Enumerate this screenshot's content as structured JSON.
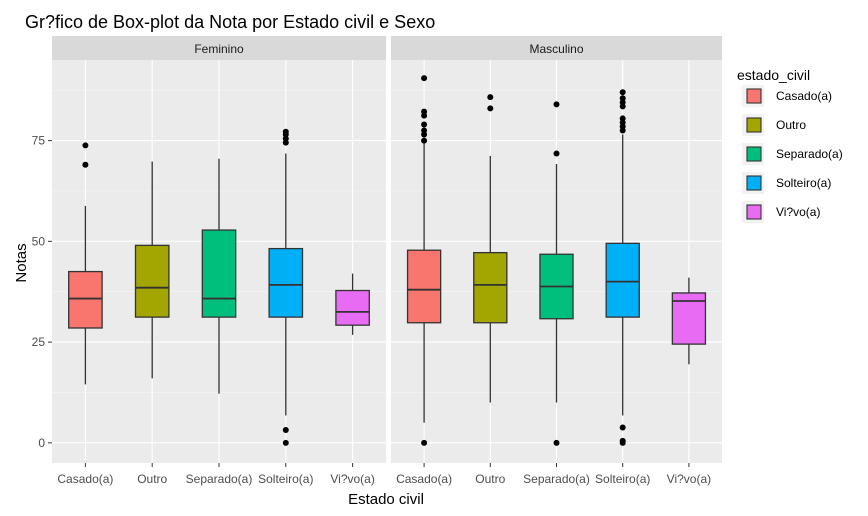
{
  "chart_data": {
    "type": "boxplot",
    "title": "Gr?fico de Box-plot da Nota por Estado civil e Sexo",
    "xlabel": "Estado civil",
    "ylabel": "Notas",
    "ylim": [
      -5,
      95
    ],
    "yticks": [
      0,
      25,
      50,
      75
    ],
    "grid": true,
    "legend_position": "right",
    "legend": {
      "title": "estado_civil",
      "entries": [
        {
          "label": "Casado(a)",
          "color": "#F8766D"
        },
        {
          "label": "Outro",
          "color": "#A3A500"
        },
        {
          "label": "Separado(a)",
          "color": "#00BF7D"
        },
        {
          "label": "Solteiro(a)",
          "color": "#00B0F6"
        },
        {
          "label": "Vi?vo(a)",
          "color": "#E76BF3"
        }
      ]
    },
    "categories": [
      "Casado(a)",
      "Outro",
      "Separado(a)",
      "Solteiro(a)",
      "Vi?vo(a)"
    ],
    "panels": [
      {
        "name": "Feminino",
        "boxes": [
          {
            "category": "Casado(a)",
            "min": 14.5,
            "q1": 28.5,
            "median": 35.8,
            "q3": 42.5,
            "max": 58.8,
            "outliers": [
              69,
              73.8
            ]
          },
          {
            "category": "Outro",
            "min": 16,
            "q1": 31.2,
            "median": 38.5,
            "q3": 49,
            "max": 69.8,
            "outliers": []
          },
          {
            "category": "Separado(a)",
            "min": 12.2,
            "q1": 31.2,
            "median": 35.8,
            "q3": 52.8,
            "max": 70.5,
            "outliers": []
          },
          {
            "category": "Solteiro(a)",
            "min": 6.8,
            "q1": 31.2,
            "median": 39.2,
            "q3": 48.2,
            "max": 71.8,
            "outliers": [
              0,
              3.2,
              74.5,
              75.5,
              76.5,
              77.2
            ]
          },
          {
            "category": "Vi?vo(a)",
            "min": 26.8,
            "q1": 29.2,
            "median": 32.5,
            "q3": 37.8,
            "max": 42,
            "outliers": []
          }
        ]
      },
      {
        "name": "Masculino",
        "boxes": [
          {
            "category": "Casado(a)",
            "min": 5,
            "q1": 29.8,
            "median": 38,
            "q3": 47.8,
            "max": 74.8,
            "outliers": [
              0,
              75,
              76.5,
              77.5,
              79,
              81.2,
              82.2,
              90.5
            ]
          },
          {
            "category": "Outro",
            "min": 10,
            "q1": 29.8,
            "median": 39.2,
            "q3": 47.2,
            "max": 71.2,
            "outliers": [
              83,
              85.8
            ]
          },
          {
            "category": "Separado(a)",
            "min": 10,
            "q1": 30.8,
            "median": 38.8,
            "q3": 46.8,
            "max": 69.2,
            "outliers": [
              0,
              71.8,
              84
            ]
          },
          {
            "category": "Solteiro(a)",
            "min": 6.8,
            "q1": 31.2,
            "median": 40,
            "q3": 49.5,
            "max": 76.5,
            "outliers": [
              0,
              0.5,
              3.8,
              77.5,
              78.5,
              79.5,
              80.5,
              83.5,
              84.5,
              85.5,
              87
            ]
          },
          {
            "category": "Vi?vo(a)",
            "min": 19.5,
            "q1": 24.5,
            "median": 35.2,
            "q3": 37.2,
            "max": 41,
            "outliers": []
          }
        ]
      }
    ]
  }
}
